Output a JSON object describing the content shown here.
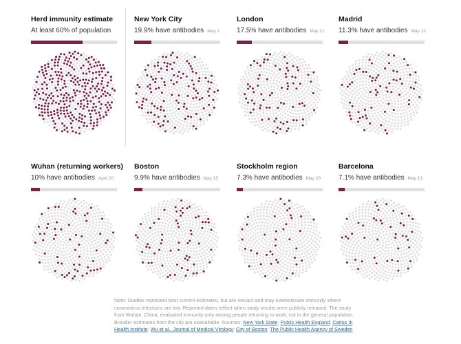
{
  "chart_data": {
    "type": "dot-grid",
    "panels": [
      {
        "title": "Herd immunity estimate",
        "subtitle": "At least 60% of population",
        "date": "",
        "value": 60
      },
      {
        "title": "New York City",
        "subtitle": "19.9% have antibodies",
        "date": "May 2",
        "value": 19.9
      },
      {
        "title": "London",
        "subtitle": "17.5% have antibodies",
        "date": "May 21",
        "value": 17.5
      },
      {
        "title": "Madrid",
        "subtitle": "11.3% have antibodies",
        "date": "May 13",
        "value": 11.3
      },
      {
        "title": "Wuhan (returning workers)",
        "subtitle": "10% have antibodies",
        "date": "April 20",
        "value": 10
      },
      {
        "title": "Boston",
        "subtitle": "9.9% have antibodies",
        "date": "May 15",
        "value": 9.9
      },
      {
        "title": "Stockholm region",
        "subtitle": "7.3% have antibodies",
        "date": "May 20",
        "value": 7.3
      },
      {
        "title": "Barcelona",
        "subtitle": "7.1% have antibodies",
        "date": "May 13",
        "value": 7.1
      }
    ],
    "colors": {
      "positive": "#7b2148",
      "negative": "#e0e0e0"
    }
  },
  "note": {
    "text": "Note: Studies represent best current estimates, but are inexact and may overestimate immunity where coronavirus infections are low. Reported dates reflect when study results were publicly released. The study from Wuhan, China, evaluated immunity only among people returning to work, not in the general population. Broader estimates from the city are unavailable. Sources: ",
    "sources": [
      "New York State",
      "Public Health England",
      "Carlos III Health Institute",
      "Wu et al., Journal of Medical Virology",
      "City of Boston",
      "The Public Health Agency of Sweden"
    ]
  }
}
